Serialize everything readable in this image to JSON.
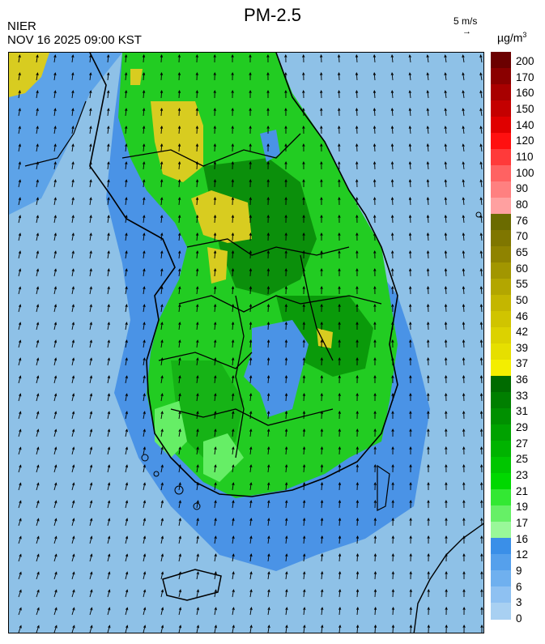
{
  "header": {
    "title": "PM-2.5",
    "agency": "NIER",
    "timestamp": "NOV 16 2025 09:00 KST",
    "wind_scale_label": "5 m/s",
    "wind_scale_arrow": "→",
    "unit_base": "µg/m",
    "unit_exp": "3"
  },
  "legend": {
    "ticks": [
      "200",
      "170",
      "160",
      "150",
      "140",
      "120",
      "110",
      "100",
      "90",
      "80",
      "76",
      "70",
      "65",
      "60",
      "55",
      "50",
      "46",
      "42",
      "39",
      "37",
      "36",
      "33",
      "31",
      "29",
      "27",
      "25",
      "23",
      "21",
      "19",
      "17",
      "16",
      "12",
      "9",
      "6",
      "3",
      "0"
    ],
    "colors": [
      "#6b0000",
      "#8a0000",
      "#a80000",
      "#c40000",
      "#e00000",
      "#ff1010",
      "#ff3a3a",
      "#ff6262",
      "#ff8080",
      "#ffa0a0",
      "#6b6b00",
      "#7f7600",
      "#8f8300",
      "#a29600",
      "#b3a600",
      "#c4b600",
      "#d0c400",
      "#dcd200",
      "#e6df00",
      "#f4ee00",
      "#006b00",
      "#007f00",
      "#009000",
      "#00a200",
      "#00b300",
      "#00c600",
      "#00d800",
      "#33e833",
      "#66f066",
      "#99f899",
      "#3a8fe8",
      "#55a0ec",
      "#6fb0ef",
      "#8ec1f2",
      "#a8d0f2"
    ],
    "band_colors": {
      "good": "#8ec1e7",
      "moderate": "#2fd82f",
      "bad": "#d8cc20"
    }
  },
  "map": {
    "region": "Korean Peninsula (South)",
    "features": [
      "wind-vectors",
      "province-boundaries",
      "coastline",
      "islands"
    ]
  }
}
